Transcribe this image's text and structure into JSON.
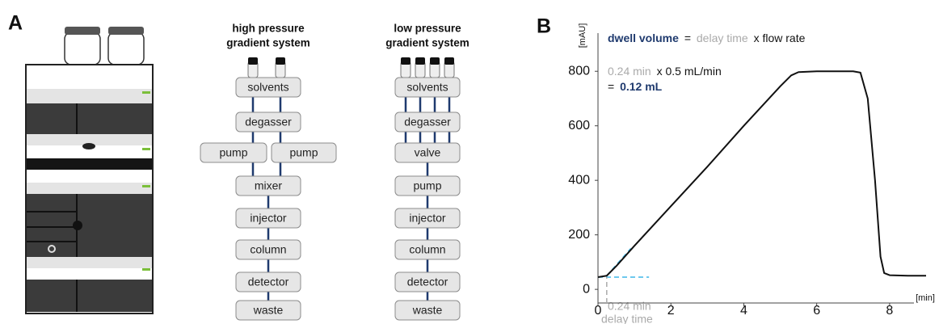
{
  "panel_labels": [
    "A",
    "B"
  ],
  "high_pressure": {
    "title": [
      "high pressure",
      "gradient system"
    ],
    "nodes": [
      "solvents",
      "degasser",
      "pump",
      "pump",
      "mixer",
      "injector",
      "column",
      "detector",
      "waste"
    ]
  },
  "low_pressure": {
    "title": [
      "low pressure",
      "gradient system"
    ],
    "nodes": [
      "solvents",
      "degasser",
      "valve",
      "pump",
      "injector",
      "column",
      "detector",
      "waste"
    ]
  },
  "chart_data": {
    "type": "line",
    "y_axis_label": "[mAU]",
    "x_axis_label": "[min]",
    "annotations": {
      "dwell_volume": "dwell volume",
      "equals": "=",
      "delay_time": "delay time",
      "times_flow_rate": "x flow rate",
      "delay_value": "0.24 min",
      "times_flow_value": "x 0.5 mL/min",
      "result_equals": "=",
      "result_value": "0.12 mL",
      "axis_delay_value": "0.24 min",
      "axis_delay_label": "delay time"
    },
    "xlim": [
      0,
      9
    ],
    "ylim": [
      -50,
      940
    ],
    "xticks": [
      0,
      2,
      4,
      6,
      8
    ],
    "yticks": [
      0,
      200,
      400,
      600,
      800
    ],
    "series": [
      {
        "color": "#111111",
        "dashed": false,
        "x": [
          0,
          0.24,
          0.5,
          1,
          2,
          3,
          4,
          5,
          5.3,
          5.5,
          6,
          7,
          7.2,
          7.4,
          7.6,
          7.75,
          7.85,
          8,
          8.5,
          9
        ],
        "values": [
          45,
          50,
          85,
          160,
          305,
          450,
          600,
          745,
          785,
          797,
          800,
          800,
          795,
          700,
          400,
          120,
          60,
          52,
          50,
          50
        ]
      },
      {
        "color": "#3fb7e8",
        "dashed": true,
        "x": [
          0,
          1.4
        ],
        "values": [
          45,
          45
        ]
      },
      {
        "color": "#3fb7e8",
        "dashed": true,
        "x": [
          0.24,
          0.9
        ],
        "values": [
          50,
          150
        ]
      },
      {
        "color": "#aaaaaa",
        "dashed": true,
        "x": [
          0.24,
          0.24
        ],
        "values": [
          -50,
          45
        ]
      }
    ]
  }
}
